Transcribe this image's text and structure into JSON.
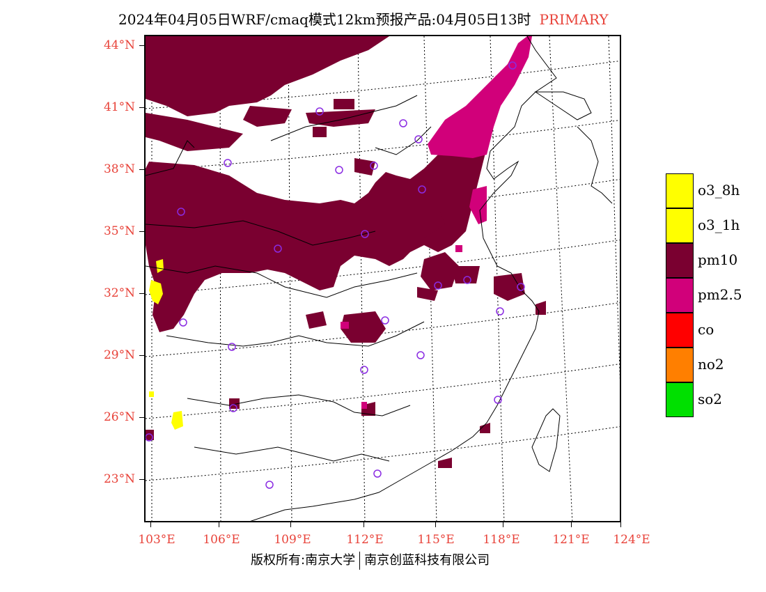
{
  "title": {
    "main": "2024年04月05日WRF/cmaq模式12km预报产品:04月05日13时",
    "tag": "PRIMARY"
  },
  "axes": {
    "lat_labels": [
      "44°N",
      "41°N",
      "38°N",
      "35°N",
      "32°N",
      "29°N",
      "26°N",
      "23°N"
    ],
    "lon_labels": [
      "103°E",
      "106°E",
      "109°E",
      "112°E",
      "115°E",
      "118°E",
      "121°E",
      "124°E"
    ]
  },
  "legend": {
    "items": [
      {
        "label": "o3_8h",
        "color": "#ffff00"
      },
      {
        "label": "o3_1h",
        "color": "#ffff00"
      },
      {
        "label": "pm10",
        "color": "#7a0030"
      },
      {
        "label": "pm2.5",
        "color": "#d1007a"
      },
      {
        "label": "co",
        "color": "#ff0000"
      },
      {
        "label": "no2",
        "color": "#ff7f00"
      },
      {
        "label": "so2",
        "color": "#00e000"
      }
    ]
  },
  "footer": {
    "left": "版权所有:南京大学",
    "right": "南京创蓝科技有限公司"
  },
  "colors": {
    "accent": "#e8433a",
    "pm10": "#7a0030",
    "pm25": "#d1007a",
    "o3": "#ffff00",
    "station": "#8a2be2"
  }
}
